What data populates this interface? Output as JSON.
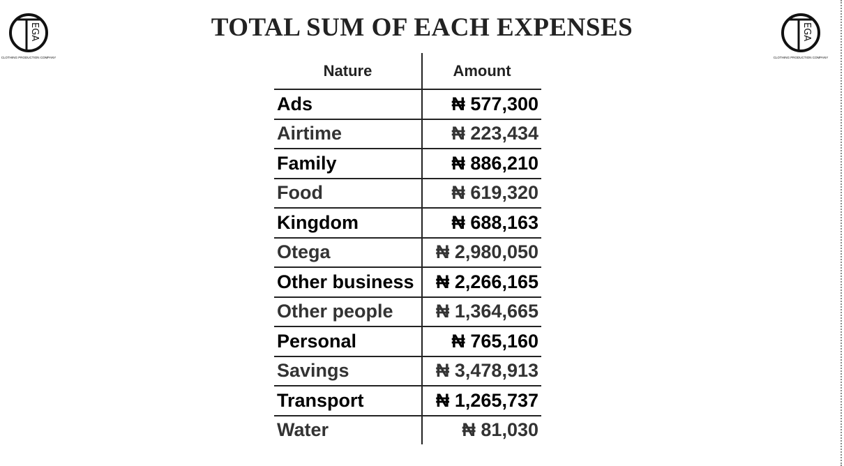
{
  "header": {
    "title": "TOTAL SUM OF EACH EXPENSES"
  },
  "logo": {
    "letters": "EGA",
    "caption": "CLOTHING PRODUCTION COMPANY"
  },
  "table": {
    "columns": [
      "Nature",
      "Amount"
    ],
    "rows": [
      [
        "Ads",
        "₦ 577,300"
      ],
      [
        "Airtime",
        "₦ 223,434"
      ],
      [
        "Family",
        "₦ 886,210"
      ],
      [
        "Food",
        "₦ 619,320"
      ],
      [
        "Kingdom",
        "₦ 688,163"
      ],
      [
        "Otega",
        "₦ 2,980,050"
      ],
      [
        "Other business",
        "₦ 2,266,165"
      ],
      [
        "Other people",
        "₦ 1,364,665"
      ],
      [
        "Personal",
        "₦ 765,160"
      ],
      [
        "Savings",
        "₦ 3,478,913"
      ],
      [
        "Transport",
        "₦ 1,265,737"
      ],
      [
        "Water",
        "₦ 81,030"
      ]
    ]
  }
}
